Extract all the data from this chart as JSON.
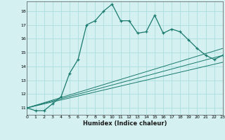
{
  "xlabel": "Humidex (Indice chaleur)",
  "background_color": "#d4f0f0",
  "line_color": "#1a7a6e",
  "grid_color": "#aadddd",
  "xlim": [
    0,
    23
  ],
  "ylim": [
    10.5,
    18.7
  ],
  "yticks": [
    11,
    12,
    13,
    14,
    15,
    16,
    17,
    18
  ],
  "xticks": [
    0,
    1,
    2,
    3,
    4,
    5,
    6,
    7,
    8,
    9,
    10,
    11,
    12,
    13,
    14,
    15,
    16,
    17,
    18,
    19,
    20,
    21,
    22,
    23
  ],
  "series1_x": [
    0,
    1,
    2,
    3,
    4,
    5,
    6,
    7,
    8,
    9,
    10,
    11,
    12,
    13,
    14,
    15,
    16,
    17,
    18,
    19,
    20,
    21,
    22,
    23
  ],
  "series1_y": [
    11.0,
    10.8,
    10.8,
    11.3,
    11.8,
    13.5,
    14.5,
    17.0,
    17.3,
    18.0,
    18.5,
    17.3,
    17.3,
    16.4,
    16.5,
    17.7,
    16.4,
    16.7,
    16.5,
    15.9,
    15.3,
    14.8,
    14.5,
    14.8
  ],
  "series2_x": [
    0,
    23
  ],
  "series2_y": [
    11.0,
    15.3
  ],
  "series3_x": [
    0,
    23
  ],
  "series3_y": [
    11.0,
    14.8
  ],
  "series4_x": [
    0,
    23
  ],
  "series4_y": [
    11.0,
    14.3
  ]
}
